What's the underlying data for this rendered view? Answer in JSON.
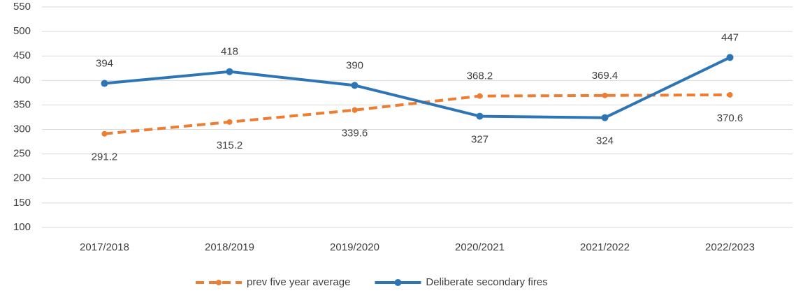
{
  "chart_data": {
    "type": "line",
    "categories": [
      "2017/2018",
      "2018/2019",
      "2019/2020",
      "2020/2021",
      "2021/2022",
      "2022/2023"
    ],
    "series": [
      {
        "name": "prev five year average",
        "color": "#ed7d31",
        "dashed": true,
        "values": [
          291.2,
          315.2,
          339.6,
          368.2,
          369.4,
          370.6
        ]
      },
      {
        "name": "Deliberate secondary fires",
        "color": "#2e75b6",
        "dashed": false,
        "values": [
          394,
          418,
          390,
          327,
          324,
          447
        ]
      }
    ],
    "ylim": [
      100,
      550
    ],
    "yticks": [
      100,
      150,
      200,
      250,
      300,
      350,
      400,
      450,
      500,
      550
    ],
    "grid": true,
    "legend": "bottom"
  }
}
